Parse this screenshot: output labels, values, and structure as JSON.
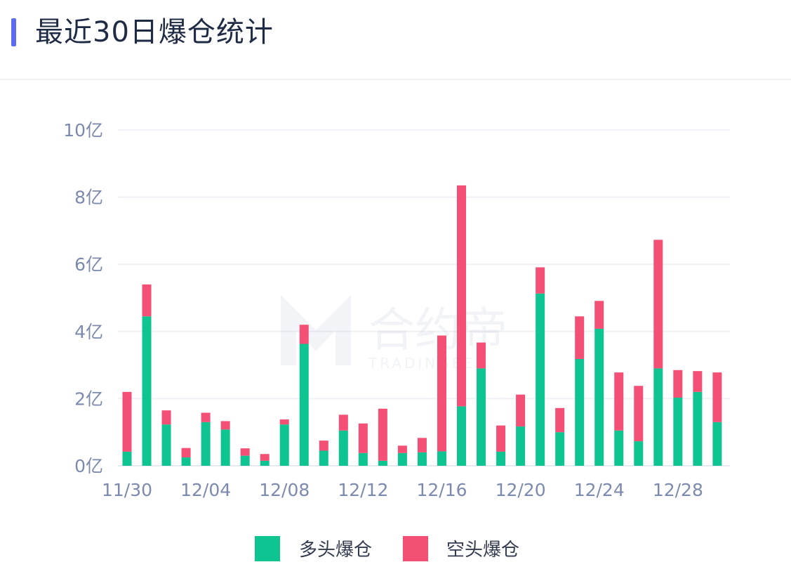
{
  "header": {
    "title": "最近30日爆仓统计"
  },
  "colors": {
    "accent": "#5b6cf0",
    "long": "#0ec592",
    "short": "#f44f74",
    "grid": "#eef1f6",
    "axis_text": "#7c8aae"
  },
  "watermark": {
    "text": "合约帝",
    "sub": "TRADINGEEE"
  },
  "chart_data": {
    "type": "bar",
    "stacked": true,
    "unit": "亿",
    "ylim": [
      0,
      10
    ],
    "y_ticks": [
      "0亿",
      "2亿",
      "4亿",
      "6亿",
      "8亿",
      "10亿"
    ],
    "y_tick_values": [
      0,
      2,
      4,
      6,
      8,
      10
    ],
    "x_tick_labels": [
      "11/30",
      "12/04",
      "12/08",
      "12/12",
      "12/16",
      "12/20",
      "12/24",
      "12/28"
    ],
    "x_tick_indices": [
      0,
      4,
      8,
      12,
      16,
      20,
      24,
      28
    ],
    "grid": true,
    "legend_position": "bottom-center",
    "categories": [
      "11/30",
      "12/01",
      "12/02",
      "12/03",
      "12/04",
      "12/05",
      "12/06",
      "12/07",
      "12/08",
      "12/09",
      "12/10",
      "12/11",
      "12/12",
      "12/13",
      "12/14",
      "12/15",
      "12/16",
      "12/17",
      "12/18",
      "12/19",
      "12/20",
      "12/21",
      "12/22",
      "12/23",
      "12/24",
      "12/25",
      "12/26",
      "12/27",
      "12/28",
      "12/29",
      "12/30"
    ],
    "series": [
      {
        "name": "多头爆仓",
        "color": "#0ec592",
        "values": [
          0.42,
          4.45,
          1.23,
          0.25,
          1.3,
          1.08,
          0.3,
          0.15,
          1.23,
          3.63,
          0.45,
          1.05,
          0.38,
          0.15,
          0.38,
          0.4,
          0.43,
          1.77,
          2.9,
          0.42,
          1.17,
          5.13,
          1.0,
          3.18,
          4.08,
          1.05,
          0.73,
          2.9,
          2.03,
          2.2,
          1.3
        ]
      },
      {
        "name": "空头爆仓",
        "color": "#f44f74",
        "values": [
          1.78,
          0.95,
          0.42,
          0.28,
          0.28,
          0.25,
          0.22,
          0.2,
          0.15,
          0.57,
          0.3,
          0.47,
          0.88,
          1.55,
          0.22,
          0.43,
          3.45,
          6.58,
          0.77,
          0.78,
          0.95,
          0.78,
          0.72,
          1.27,
          0.83,
          1.73,
          1.65,
          3.83,
          0.82,
          0.62,
          1.48
        ]
      }
    ]
  }
}
